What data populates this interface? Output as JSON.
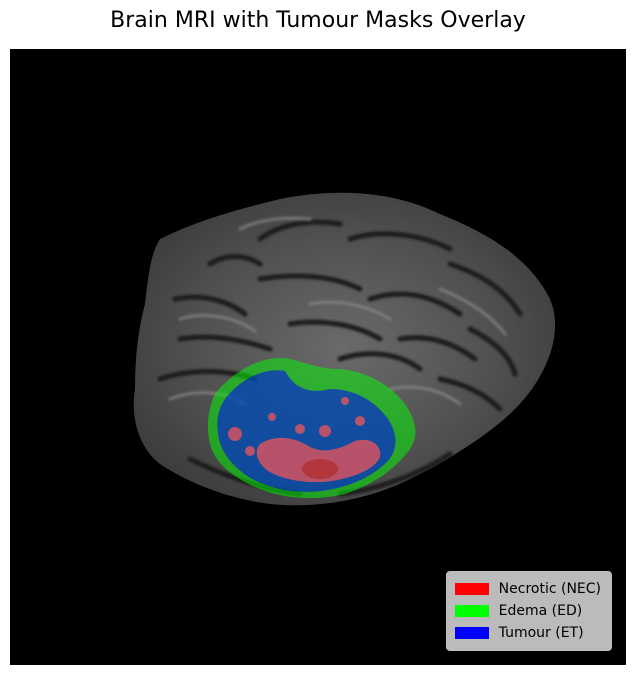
{
  "figure": {
    "title": "Brain MRI with Tumour Masks Overlay"
  },
  "legend": {
    "entries": [
      {
        "label": "Necrotic (NEC)",
        "color": "#ff0000"
      },
      {
        "label": "Edema (ED)",
        "color": "#00ff00"
      },
      {
        "label": "Tumour (ET)",
        "color": "#0000ff"
      }
    ]
  },
  "image": {
    "background_color": "#000000",
    "brain_color": "#5a5a5a",
    "overlay_opacity": 0.45
  }
}
